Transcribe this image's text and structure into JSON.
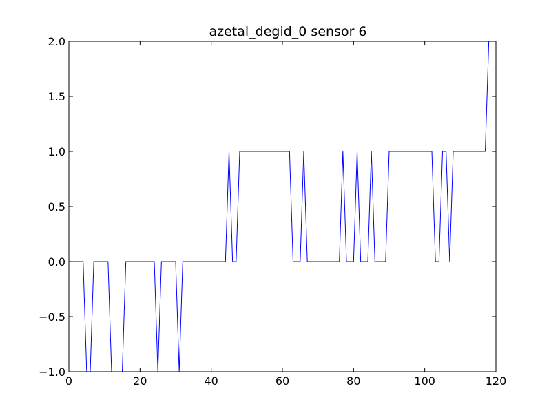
{
  "chart_data": {
    "type": "line",
    "title": "azetal_degid_0 sensor 6",
    "xlabel": "",
    "ylabel": "",
    "xlim": [
      0,
      120
    ],
    "ylim": [
      -1.0,
      2.0
    ],
    "xticks": [
      0,
      20,
      40,
      60,
      80,
      100,
      120
    ],
    "xtick_labels": [
      "0",
      "20",
      "40",
      "60",
      "80",
      "100",
      "120"
    ],
    "yticks": [
      -1.0,
      -0.5,
      0.0,
      0.5,
      1.0,
      1.5,
      2.0
    ],
    "ytick_labels": [
      "−1.0",
      "−0.5",
      "0.0",
      "0.5",
      "1.0",
      "1.5",
      "2.0"
    ],
    "grid": false,
    "line_color": "#0000ff",
    "series": [
      {
        "x": [
          0,
          1,
          2,
          3,
          4,
          5,
          6,
          7,
          8,
          9,
          10,
          11,
          12,
          13,
          14,
          15,
          16,
          17,
          18,
          19,
          20,
          21,
          22,
          23,
          24,
          25,
          26,
          27,
          28,
          29,
          30,
          31,
          32,
          33,
          34,
          35,
          36,
          37,
          38,
          39,
          40,
          41,
          42,
          43,
          44,
          45,
          46,
          47,
          48,
          49,
          50,
          51,
          52,
          53,
          54,
          55,
          56,
          57,
          58,
          59,
          60,
          61,
          62,
          63,
          64,
          65,
          66,
          67,
          68,
          69,
          70,
          71,
          72,
          73,
          74,
          75,
          76,
          77,
          78,
          79,
          80,
          81,
          82,
          83,
          84,
          85,
          86,
          87,
          88,
          89,
          90,
          91,
          92,
          93,
          94,
          95,
          96,
          97,
          98,
          99,
          100,
          101,
          102,
          103,
          104,
          105,
          106,
          107,
          108,
          109,
          110,
          111,
          112,
          113,
          114,
          115,
          116,
          117,
          118
        ],
        "y": [
          0,
          0,
          0,
          0,
          0,
          -1,
          -1,
          0,
          0,
          0,
          0,
          0,
          -1,
          -1,
          -1,
          -1,
          0,
          0,
          0,
          0,
          0,
          0,
          0,
          0,
          0,
          -1,
          0,
          0,
          0,
          0,
          0,
          -1,
          0,
          0,
          0,
          0,
          0,
          0,
          0,
          0,
          0,
          0,
          0,
          0,
          0,
          1,
          0,
          0,
          1,
          1,
          1,
          1,
          1,
          1,
          1,
          1,
          1,
          1,
          1,
          1,
          1,
          1,
          1,
          0,
          0,
          0,
          1,
          0,
          0,
          0,
          0,
          0,
          0,
          0,
          0,
          0,
          0,
          1,
          0,
          0,
          0,
          1,
          0,
          0,
          0,
          1,
          0,
          0,
          0,
          0,
          1,
          1,
          1,
          1,
          1,
          1,
          1,
          1,
          1,
          1,
          1,
          1,
          1,
          0,
          0,
          1,
          1,
          0,
          1,
          1,
          1,
          1,
          1,
          1,
          1,
          1,
          1,
          1,
          2
        ]
      }
    ]
  }
}
